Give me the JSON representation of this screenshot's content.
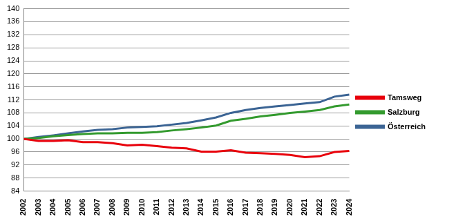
{
  "chart_data": {
    "type": "line",
    "categories": [
      "2002",
      "2003",
      "2004",
      "2005",
      "2006",
      "2007",
      "2008",
      "2009",
      "2010",
      "2011",
      "2012",
      "2013",
      "2014",
      "2015",
      "2016",
      "2017",
      "2018",
      "2019",
      "2020",
      "2021",
      "2022",
      "2023",
      "2024"
    ],
    "series": [
      {
        "name": "Tamsweg",
        "color": "#e8000b",
        "values": [
          100,
          99.4,
          99.4,
          99.6,
          99.0,
          99.0,
          98.7,
          98.0,
          98.2,
          97.8,
          97.3,
          97.1,
          96.1,
          96.1,
          96.5,
          95.8,
          95.6,
          95.4,
          95.1,
          94.4,
          94.7,
          96.0,
          96.3
        ]
      },
      {
        "name": "Salzburg",
        "color": "#339a2e",
        "values": [
          100,
          100.3,
          100.8,
          101.2,
          101.5,
          101.7,
          101.7,
          101.9,
          101.9,
          102.1,
          102.6,
          103.0,
          103.5,
          104.1,
          105.6,
          106.2,
          106.9,
          107.4,
          108.0,
          108.4,
          108.9,
          110.0,
          110.6
        ]
      },
      {
        "name": "Österreich",
        "color": "#3b6494",
        "values": [
          100,
          100.6,
          101.1,
          101.7,
          102.3,
          102.8,
          103.0,
          103.5,
          103.7,
          103.9,
          104.4,
          104.9,
          105.7,
          106.6,
          108.0,
          108.9,
          109.5,
          110.0,
          110.4,
          110.9,
          111.3,
          113.0,
          113.6
        ]
      }
    ],
    "ylim": [
      84,
      140
    ],
    "yticks": [
      84,
      88,
      92,
      96,
      100,
      104,
      108,
      112,
      116,
      120,
      124,
      128,
      132,
      136,
      140
    ],
    "grid": true,
    "legend": "right"
  }
}
